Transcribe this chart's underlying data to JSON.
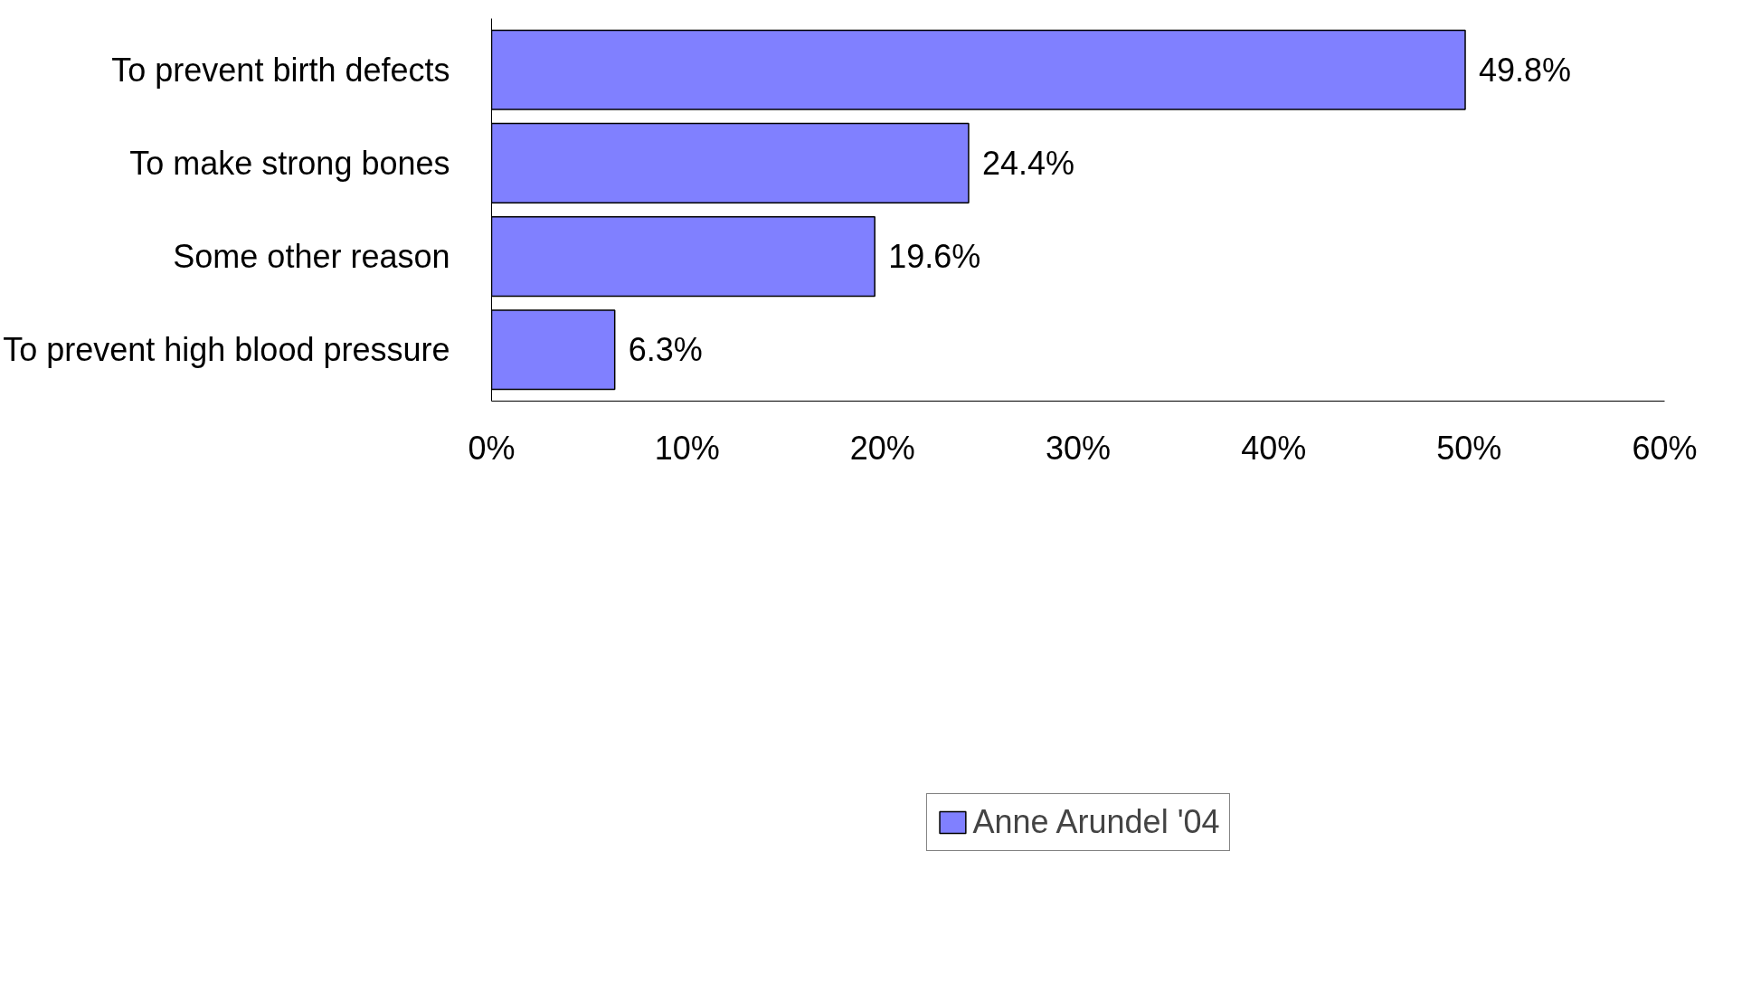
{
  "chart_data": {
    "type": "bar",
    "orientation": "horizontal",
    "categories": [
      "To prevent birth defects",
      "To make strong bones",
      "Some other reason",
      "To prevent high blood pressure"
    ],
    "series": [
      {
        "name": "Anne Arundel '04",
        "color": "#8080ff",
        "values": [
          49.8,
          24.4,
          19.6,
          6.3
        ],
        "value_labels": [
          "49.8%",
          "24.4%",
          "19.6%",
          "6.3%"
        ]
      }
    ],
    "xlim": [
      0,
      60
    ],
    "xticks": [
      {
        "value": 0,
        "label": "0%"
      },
      {
        "value": 10,
        "label": "10%"
      },
      {
        "value": 20,
        "label": "20%"
      },
      {
        "value": 30,
        "label": "30%"
      },
      {
        "value": 40,
        "label": "40%"
      },
      {
        "value": 50,
        "label": "50%"
      },
      {
        "value": 60,
        "label": "60%"
      }
    ],
    "grid": false,
    "legend": "bottom"
  }
}
